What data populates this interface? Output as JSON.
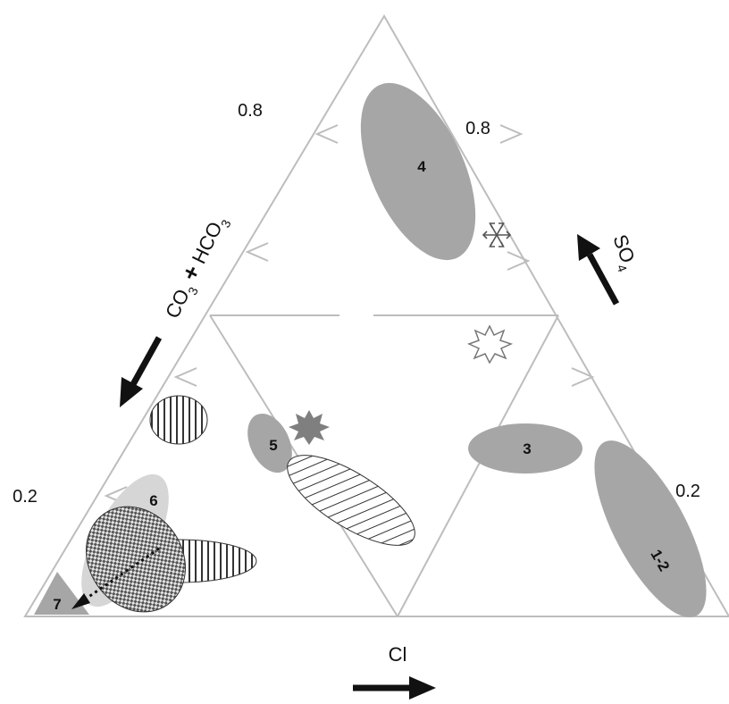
{
  "diagram": {
    "type": "ternary-anion-diagram",
    "axes": {
      "left": {
        "label_main": "CO",
        "sub1": "3",
        "plus": "+",
        "label_second": "HCO",
        "sub2": "3"
      },
      "right": {
        "label_main": "SO",
        "sub": "4"
      },
      "bottom": {
        "label": "Cl"
      }
    },
    "ticks": {
      "left_high": "0.8",
      "right_high": "0.8",
      "left_low": "0.2",
      "right_low": "0.2"
    },
    "zones": [
      {
        "id": "1-2",
        "label": "1-2"
      },
      {
        "id": "3",
        "label": "3"
      },
      {
        "id": "4",
        "label": "4"
      },
      {
        "id": "5",
        "label": "5"
      },
      {
        "id": "6",
        "label": "6"
      },
      {
        "id": "7",
        "label": "7"
      }
    ],
    "colors": {
      "line": "#bdbdbd",
      "zone_fill": "#a6a6a6",
      "zone_light": "#d6d6d6",
      "arrow": "#111111"
    },
    "symbols": [
      "snowflake-icon",
      "star-outline-icon",
      "star-filled-icon"
    ]
  }
}
